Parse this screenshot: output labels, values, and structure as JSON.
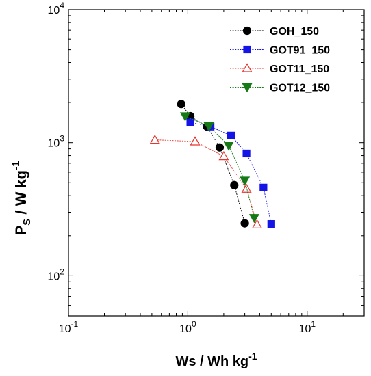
{
  "chart_data": {
    "type": "scatter",
    "x_scale": "log",
    "y_scale": "log",
    "xlim": [
      0.1,
      30
    ],
    "ylim": [
      50,
      10000
    ],
    "x_ticks": [
      {
        "value": 0.1,
        "base": "10",
        "exp": "-1"
      },
      {
        "value": 1,
        "base": "10",
        "exp": "0"
      },
      {
        "value": 10,
        "base": "10",
        "exp": "1"
      }
    ],
    "y_ticks": [
      {
        "value": 100,
        "base": "10",
        "exp": "2"
      },
      {
        "value": 1000,
        "base": "10",
        "exp": "3"
      },
      {
        "value": 10000,
        "base": "10",
        "exp": "4"
      }
    ],
    "xlabel": "Ws / Wh kg",
    "xlabel_sup": "-1",
    "ylabel_main": "P",
    "ylabel_sub": "S",
    "ylabel_rest": " / W kg",
    "ylabel_sup": "-1",
    "legend_position": "top-right",
    "grid": false,
    "series": [
      {
        "name": "GOH_150",
        "color": "#000000",
        "marker": "circle",
        "filled": true,
        "points": [
          [
            0.88,
            1950
          ],
          [
            1.05,
            1580
          ],
          [
            1.45,
            1320
          ],
          [
            1.85,
            920
          ],
          [
            2.45,
            480
          ],
          [
            3.0,
            248
          ]
        ]
      },
      {
        "name": "GOT91_150",
        "color": "#1414e6",
        "marker": "square",
        "filled": true,
        "points": [
          [
            1.05,
            1420
          ],
          [
            1.55,
            1320
          ],
          [
            2.3,
            1130
          ],
          [
            3.1,
            830
          ],
          [
            4.3,
            460
          ],
          [
            5.0,
            245
          ]
        ]
      },
      {
        "name": "GOT11_150",
        "color": "#e8352e",
        "marker": "triangle-up",
        "filled": false,
        "points": [
          [
            0.53,
            1050
          ],
          [
            1.15,
            1020
          ],
          [
            2.0,
            790
          ],
          [
            3.1,
            450
          ],
          [
            3.8,
            243
          ]
        ]
      },
      {
        "name": "GOT12_150",
        "color": "#157a15",
        "marker": "triangle-down",
        "filled": true,
        "points": [
          [
            0.95,
            1580
          ],
          [
            1.5,
            1330
          ],
          [
            2.2,
            950
          ],
          [
            3.0,
            520
          ],
          [
            3.6,
            272
          ]
        ]
      }
    ]
  }
}
